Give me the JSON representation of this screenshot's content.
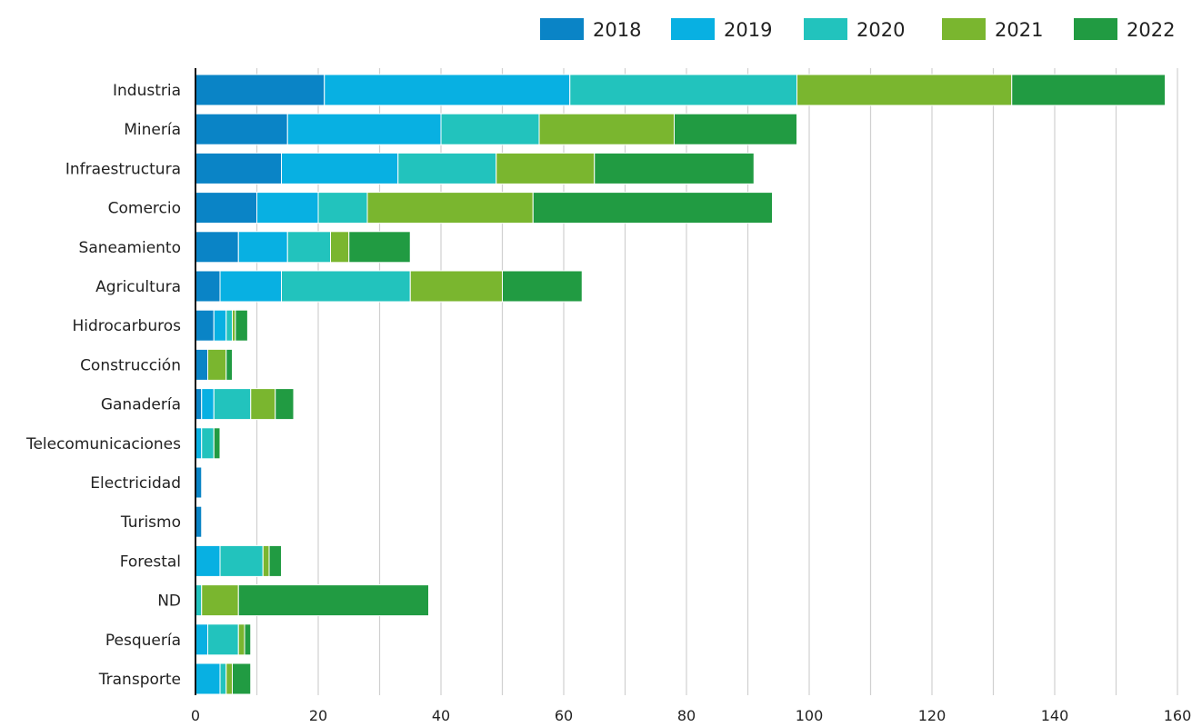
{
  "chart_data": {
    "type": "bar",
    "orientation": "horizontal",
    "stacked": true,
    "title": "",
    "xlabel": "",
    "ylabel": "",
    "xlim": [
      0,
      160
    ],
    "x_ticks": [
      0,
      20,
      40,
      60,
      80,
      100,
      120,
      140,
      160
    ],
    "grid": "vertical",
    "legend_position": "top-right",
    "categories": [
      "Industria",
      "Minería",
      "Infraestructura",
      "Comercio",
      "Saneamiento",
      "Agricultura",
      "Hidrocarburos",
      "Construcción",
      "Ganadería",
      "Telecomunicaciones",
      "Electricidad",
      "Turismo",
      "Forestal",
      "ND",
      "Pesquería",
      "Transporte"
    ],
    "series": [
      {
        "name": "2018",
        "color": "#0A84C6",
        "values": [
          21,
          15,
          14,
          10,
          7,
          4,
          3,
          2,
          1,
          0,
          1,
          1,
          0,
          0,
          0,
          0
        ]
      },
      {
        "name": "2019",
        "color": "#08B0E2",
        "values": [
          40,
          25,
          19,
          10,
          8,
          10,
          2,
          0,
          2,
          1,
          0,
          0,
          4,
          0,
          2,
          4
        ]
      },
      {
        "name": "2020",
        "color": "#22C3BD",
        "values": [
          37,
          16,
          16,
          8,
          7,
          21,
          1,
          0,
          6,
          2,
          0,
          0,
          7,
          1,
          5,
          1
        ]
      },
      {
        "name": "2021",
        "color": "#7AB62F",
        "values": [
          35,
          22,
          16,
          27,
          3,
          15,
          0.5,
          3,
          4,
          0,
          0,
          0,
          1,
          6,
          1,
          1
        ]
      },
      {
        "name": "2022",
        "color": "#219B42",
        "values": [
          25,
          20,
          26,
          39,
          10,
          13,
          2,
          1,
          3,
          1,
          0,
          0,
          2,
          31,
          1,
          3
        ]
      }
    ]
  }
}
